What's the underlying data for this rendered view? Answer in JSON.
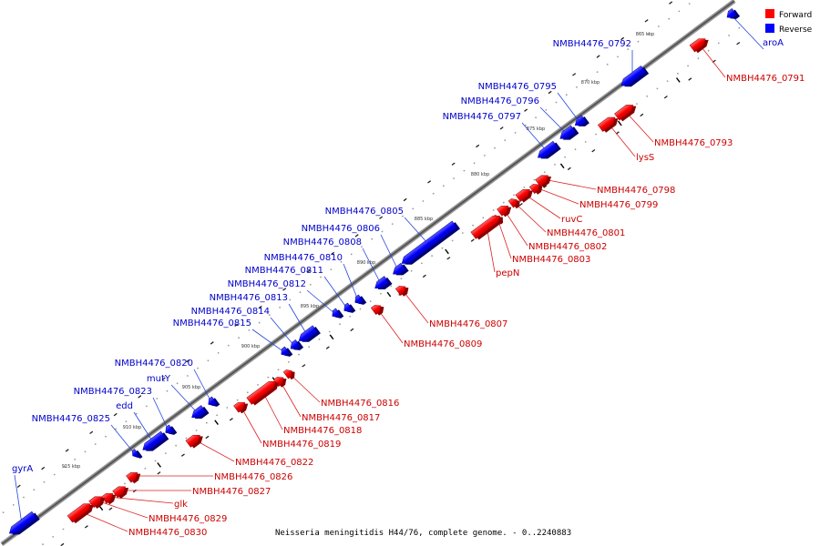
{
  "legend": {
    "forward": "Forward",
    "reverse": "Reverse"
  },
  "colors": {
    "forward": "#ff0000",
    "reverse": "#0000ff",
    "forward_label": "#cc0000",
    "reverse_label": "#0000cc"
  },
  "caption": "Neisseria meningitidis H44/76, complete genome. - 0..2240883",
  "kbp_ticks": [
    "865 kbp",
    "870 kbp",
    "875 kbp",
    "880 kbp",
    "885 kbp",
    "890 kbp",
    "895 kbp",
    "900 kbp",
    "905 kbp",
    "910 kbp",
    "915 kbp"
  ],
  "forward_genes": [
    "NMBH4476_0791",
    "NMBH4476_0793",
    "lysS",
    "NMBH4476_0798",
    "NMBH4476_0799",
    "ruvC",
    "NMBH4476_0801",
    "NMBH4476_0802",
    "NMBH4476_0803",
    "pepN",
    "NMBH4476_0807",
    "NMBH4476_0809",
    "NMBH4476_0816",
    "NMBH4476_0817",
    "NMBH4476_0818",
    "NMBH4476_0819",
    "NMBH4476_0822",
    "NMBH4476_0826",
    "NMBH4476_0827",
    "glk",
    "NMBH4476_0829",
    "NMBH4476_0830"
  ],
  "reverse_genes": [
    "aroA",
    "NMBH4476_0792",
    "NMBH4476_0795",
    "NMBH4476_0796",
    "NMBH4476_0797",
    "NMBH4476_0805",
    "NMBH4476_0806",
    "NMBH4476_0808",
    "NMBH4476_0810",
    "NMBH4476_0811",
    "NMBH4476_0812",
    "NMBH4476_0813",
    "NMBH4476_0814",
    "NMBH4476_0815",
    "NMBH4476_0820",
    "mutY",
    "NMBH4476_0823",
    "edd",
    "NMBH4476_0825",
    "gyrA"
  ]
}
